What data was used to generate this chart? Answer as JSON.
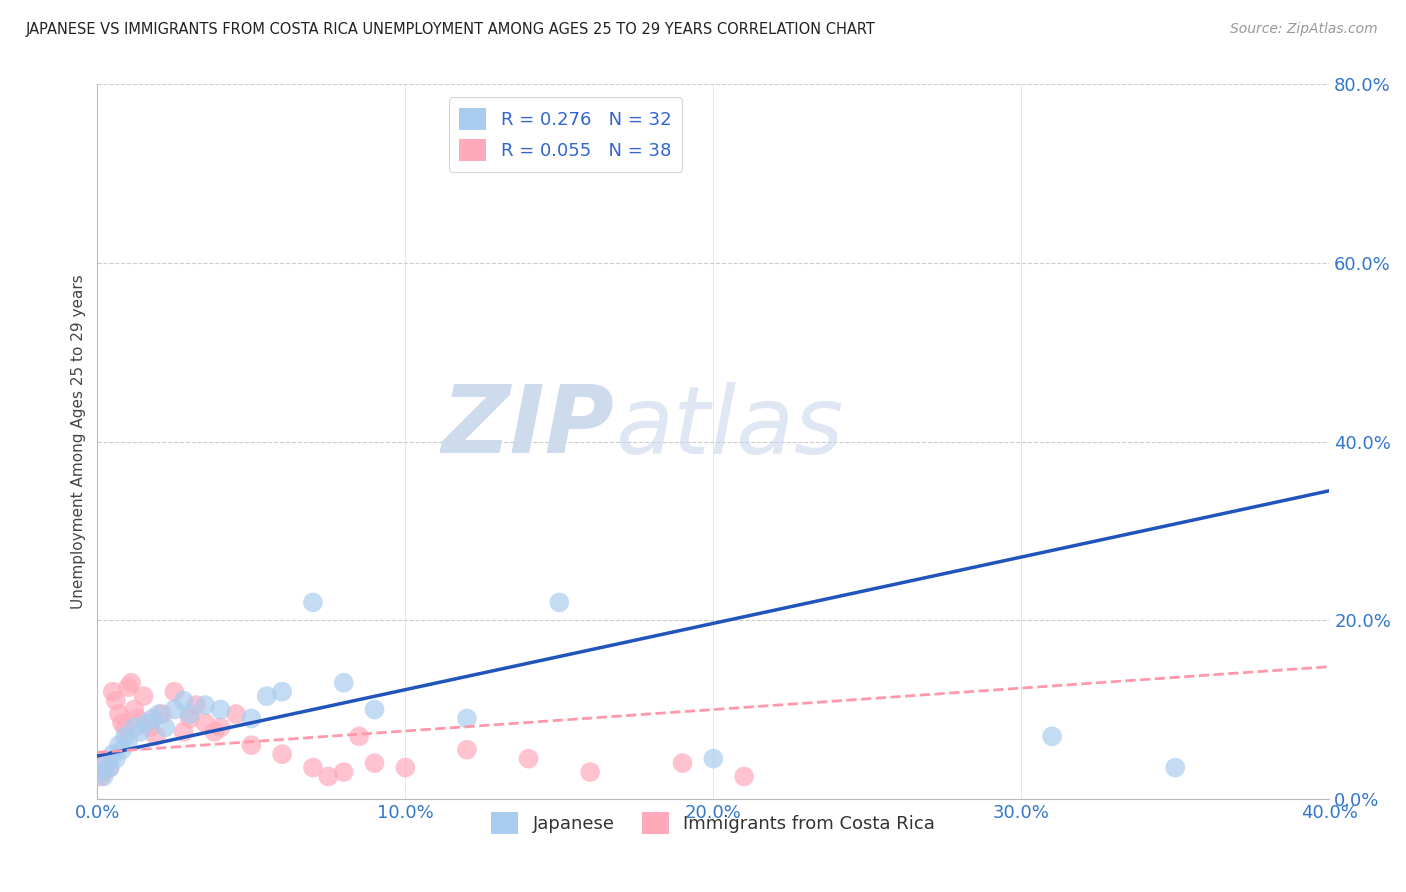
{
  "title": "JAPANESE VS IMMIGRANTS FROM COSTA RICA UNEMPLOYMENT AMONG AGES 25 TO 29 YEARS CORRELATION CHART",
  "source": "Source: ZipAtlas.com",
  "ylabel": "Unemployment Among Ages 25 to 29 years",
  "xlim": [
    0.0,
    0.4
  ],
  "ylim": [
    0.0,
    0.8
  ],
  "xticks": [
    0.0,
    0.1,
    0.2,
    0.3,
    0.4
  ],
  "yticks": [
    0.0,
    0.2,
    0.4,
    0.6,
    0.8
  ],
  "xtick_labels": [
    "0.0%",
    "10.0%",
    "20.0%",
    "30.0%",
    "40.0%"
  ],
  "ytick_labels": [
    "0.0%",
    "20.0%",
    "40.0%",
    "60.0%",
    "80.0%"
  ],
  "watermark_zip": "ZIP",
  "watermark_atlas": "atlas",
  "legend_R1": "R = 0.276",
  "legend_N1": "N = 32",
  "legend_R2": "R = 0.055",
  "legend_N2": "N = 38",
  "color_japanese": "#AACCEE",
  "color_cr": "#FFAABB",
  "line_color_japanese": "#2255BB",
  "line_color_cr": "#FF99AA",
  "japanese_x": [
    0.001,
    0.002,
    0.003,
    0.004,
    0.005,
    0.006,
    0.007,
    0.008,
    0.009,
    0.01,
    0.012,
    0.014,
    0.016,
    0.018,
    0.02,
    0.022,
    0.025,
    0.028,
    0.03,
    0.035,
    0.04,
    0.05,
    0.055,
    0.06,
    0.07,
    0.08,
    0.09,
    0.12,
    0.15,
    0.2,
    0.31,
    0.35
  ],
  "japanese_y": [
    0.03,
    0.025,
    0.04,
    0.035,
    0.05,
    0.045,
    0.06,
    0.055,
    0.07,
    0.065,
    0.08,
    0.075,
    0.085,
    0.09,
    0.095,
    0.08,
    0.1,
    0.11,
    0.095,
    0.105,
    0.1,
    0.09,
    0.115,
    0.12,
    0.22,
    0.13,
    0.1,
    0.09,
    0.22,
    0.045,
    0.07,
    0.035
  ],
  "cr_x": [
    0.001,
    0.002,
    0.003,
    0.004,
    0.005,
    0.006,
    0.007,
    0.008,
    0.009,
    0.01,
    0.011,
    0.012,
    0.013,
    0.015,
    0.017,
    0.019,
    0.021,
    0.025,
    0.028,
    0.03,
    0.032,
    0.035,
    0.038,
    0.04,
    0.045,
    0.05,
    0.06,
    0.07,
    0.075,
    0.08,
    0.085,
    0.09,
    0.1,
    0.12,
    0.14,
    0.16,
    0.19,
    0.21
  ],
  "cr_y": [
    0.025,
    0.03,
    0.04,
    0.035,
    0.12,
    0.11,
    0.095,
    0.085,
    0.08,
    0.125,
    0.13,
    0.1,
    0.09,
    0.115,
    0.08,
    0.07,
    0.095,
    0.12,
    0.075,
    0.09,
    0.105,
    0.085,
    0.075,
    0.08,
    0.095,
    0.06,
    0.05,
    0.035,
    0.025,
    0.03,
    0.07,
    0.04,
    0.035,
    0.055,
    0.045,
    0.03,
    0.04,
    0.025
  ],
  "jap_line_x": [
    0.0,
    0.4
  ],
  "jap_line_y": [
    0.048,
    0.345
  ],
  "cr_line_x": [
    0.0,
    0.4
  ],
  "cr_line_y": [
    0.052,
    0.148
  ]
}
